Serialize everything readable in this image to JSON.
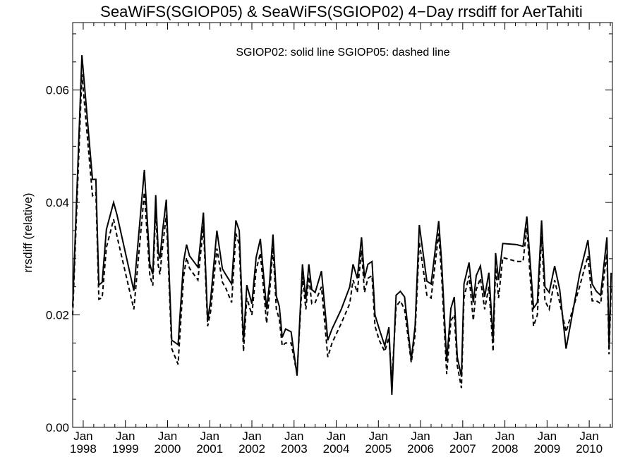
{
  "chart_data": {
    "type": "line",
    "title": "SeaWiFS(SGIOP05) & SeaWiFS(SGIOP02) 4−Day rrsdiff for AerTahiti",
    "annotation": "SGIOP02: solid line   SGIOP05: dashed line",
    "xlabel": "",
    "ylabel": "rrsdiff (relative)",
    "xlim": [
      1997.75,
      2010.55
    ],
    "ylim": [
      0.0,
      0.072
    ],
    "y_ticks": [
      0.0,
      0.02,
      0.04,
      0.06
    ],
    "y_tick_labels": [
      "0.00",
      "0.02",
      "0.04",
      "0.06"
    ],
    "x_ticks": [
      {
        "year": 1998,
        "label": [
          "Jan",
          "1998"
        ]
      },
      {
        "year": 1999,
        "label": [
          "Jan",
          "1999"
        ]
      },
      {
        "year": 2000,
        "label": [
          "Jan",
          "2000"
        ]
      },
      {
        "year": 2001,
        "label": [
          "Jan",
          "2001"
        ]
      },
      {
        "year": 2002,
        "label": [
          "Jan",
          "2002"
        ]
      },
      {
        "year": 2003,
        "label": [
          "Jan",
          "2003"
        ]
      },
      {
        "year": 2004,
        "label": [
          "Jan",
          "2004"
        ]
      },
      {
        "year": 2005,
        "label": [
          "Jan",
          "2005"
        ]
      },
      {
        "year": 2006,
        "label": [
          "Jan",
          "2006"
        ]
      },
      {
        "year": 2007,
        "label": [
          "Jan",
          "2007"
        ]
      },
      {
        "year": 2008,
        "label": [
          "Jan",
          "2008"
        ]
      },
      {
        "year": 2009,
        "label": [
          "Jan",
          "2009"
        ]
      },
      {
        "year": 2010,
        "label": [
          "Jan",
          "2010"
        ]
      }
    ],
    "grid": false,
    "series": [
      {
        "name": "SGIOP02",
        "style": "solid",
        "color": "#000000",
        "x": [
          1997.75,
          1997.97,
          1998.22,
          1998.3,
          1998.37,
          1998.45,
          1998.55,
          1998.72,
          1998.8,
          1999.2,
          1999.45,
          1999.58,
          1999.65,
          1999.72,
          1999.78,
          1999.82,
          1999.88,
          1999.97,
          2000.1,
          2000.25,
          2000.38,
          2000.45,
          2000.52,
          2000.72,
          2000.85,
          2000.95,
          2001.02,
          2001.17,
          2001.3,
          2001.38,
          2001.52,
          2001.62,
          2001.7,
          2001.8,
          2001.88,
          2002.0,
          2002.1,
          2002.2,
          2002.35,
          2002.42,
          2002.5,
          2002.58,
          2002.65,
          2002.72,
          2002.8,
          2002.93,
          2003.07,
          2003.2,
          2003.28,
          2003.35,
          2003.42,
          2003.5,
          2003.65,
          2003.8,
          2003.9,
          2004.12,
          2004.32,
          2004.4,
          2004.5,
          2004.6,
          2004.67,
          2004.75,
          2004.85,
          2004.92,
          2005.02,
          2005.15,
          2005.25,
          2005.32,
          2005.42,
          2005.52,
          2005.62,
          2005.78,
          2005.87,
          2005.97,
          2006.15,
          2006.25,
          2006.43,
          2006.5,
          2006.62,
          2006.72,
          2006.8,
          2006.87,
          2006.97,
          2007.03,
          2007.15,
          2007.25,
          2007.32,
          2007.42,
          2007.52,
          2007.62,
          2007.72,
          2007.78,
          2007.85,
          2007.95,
          2008.28,
          2008.43,
          2008.52,
          2008.68,
          2008.77,
          2008.87,
          2008.95,
          2009.05,
          2009.18,
          2009.3,
          2009.45,
          2009.77,
          2009.97,
          2010.07,
          2010.17,
          2010.27,
          2010.42,
          2010.47,
          2010.52
        ],
        "y": [
          0.0215,
          0.0662,
          0.0441,
          0.0441,
          0.0253,
          0.0258,
          0.0352,
          0.04,
          0.0378,
          0.0243,
          0.0458,
          0.029,
          0.0272,
          0.0413,
          0.0312,
          0.03,
          0.0348,
          0.0405,
          0.0155,
          0.0147,
          0.0295,
          0.0325,
          0.0305,
          0.0285,
          0.0382,
          0.019,
          0.0225,
          0.035,
          0.0282,
          0.0272,
          0.0255,
          0.0368,
          0.035,
          0.0152,
          0.0253,
          0.022,
          0.0302,
          0.0335,
          0.021,
          0.0258,
          0.0343,
          0.0233,
          0.0215,
          0.016,
          0.0175,
          0.017,
          0.0092,
          0.029,
          0.0228,
          0.029,
          0.0245,
          0.024,
          0.0278,
          0.0155,
          0.0175,
          0.021,
          0.025,
          0.029,
          0.0265,
          0.0338,
          0.0265,
          0.029,
          0.0295,
          0.02,
          0.0175,
          0.0145,
          0.0178,
          0.0058,
          0.0235,
          0.0242,
          0.0232,
          0.012,
          0.018,
          0.036,
          0.026,
          0.0255,
          0.0367,
          0.0295,
          0.0118,
          0.0212,
          0.0232,
          0.0125,
          0.009,
          0.0255,
          0.0293,
          0.0222,
          0.027,
          0.0287,
          0.0232,
          0.0275,
          0.0155,
          0.031,
          0.0262,
          0.0327,
          0.0325,
          0.0322,
          0.0375,
          0.0212,
          0.0222,
          0.0368,
          0.025,
          0.024,
          0.0287,
          0.0245,
          0.014,
          0.0272,
          0.0333,
          0.0255,
          0.0242,
          0.0235,
          0.0338,
          0.0145,
          0.0275
        ]
      },
      {
        "name": "SGIOP05",
        "style": "dashed",
        "color": "#000000",
        "x": [
          1997.75,
          1997.97,
          1998.22,
          1998.3,
          1998.37,
          1998.45,
          1998.55,
          1998.72,
          1998.8,
          1999.2,
          1999.45,
          1999.58,
          1999.65,
          1999.72,
          1999.78,
          1999.82,
          1999.88,
          1999.97,
          2000.1,
          2000.25,
          2000.38,
          2000.45,
          2000.52,
          2000.72,
          2000.85,
          2000.95,
          2001.02,
          2001.17,
          2001.3,
          2001.38,
          2001.52,
          2001.62,
          2001.7,
          2001.8,
          2001.88,
          2002.0,
          2002.1,
          2002.2,
          2002.35,
          2002.42,
          2002.5,
          2002.58,
          2002.65,
          2002.72,
          2002.8,
          2002.93,
          2003.07,
          2003.2,
          2003.28,
          2003.35,
          2003.42,
          2003.5,
          2003.65,
          2003.8,
          2003.9,
          2004.12,
          2004.32,
          2004.4,
          2004.5,
          2004.6,
          2004.67,
          2004.75,
          2004.85,
          2004.92,
          2005.02,
          2005.15,
          2005.25,
          2005.32,
          2005.42,
          2005.52,
          2005.62,
          2005.78,
          2005.87,
          2005.97,
          2006.15,
          2006.25,
          2006.43,
          2006.5,
          2006.62,
          2006.72,
          2006.8,
          2006.87,
          2006.97,
          2007.03,
          2007.15,
          2007.25,
          2007.32,
          2007.42,
          2007.52,
          2007.62,
          2007.72,
          2007.78,
          2007.85,
          2007.95,
          2008.28,
          2008.43,
          2008.52,
          2008.68,
          2008.77,
          2008.87,
          2008.95,
          2009.05,
          2009.18,
          2009.3,
          2009.45,
          2009.77,
          2009.97,
          2010.07,
          2010.17,
          2010.27,
          2010.42,
          2010.47,
          2010.52
        ],
        "y": [
          0.02,
          0.0628,
          0.0412,
          0.0418,
          0.0228,
          0.023,
          0.032,
          0.037,
          0.034,
          0.021,
          0.0418,
          0.027,
          0.0252,
          0.039,
          0.0288,
          0.0272,
          0.032,
          0.0378,
          0.014,
          0.0112,
          0.0268,
          0.0302,
          0.0283,
          0.0262,
          0.0358,
          0.018,
          0.0205,
          0.0318,
          0.0258,
          0.0248,
          0.0222,
          0.0345,
          0.0325,
          0.0135,
          0.023,
          0.02,
          0.028,
          0.031,
          0.0185,
          0.0238,
          0.032,
          0.021,
          0.0192,
          0.0145,
          0.015,
          0.015,
          0.0095,
          0.0268,
          0.021,
          0.0268,
          0.022,
          0.0222,
          0.025,
          0.0125,
          0.015,
          0.0185,
          0.022,
          0.0262,
          0.024,
          0.0315,
          0.024,
          0.0265,
          0.027,
          0.018,
          0.0155,
          0.0135,
          0.016,
          0.0082,
          0.0215,
          0.0225,
          0.021,
          0.0115,
          0.0165,
          0.033,
          0.0235,
          0.023,
          0.0345,
          0.027,
          0.0095,
          0.019,
          0.02,
          0.011,
          0.007,
          0.023,
          0.027,
          0.019,
          0.0245,
          0.0265,
          0.021,
          0.025,
          0.0135,
          0.0285,
          0.023,
          0.0302,
          0.0295,
          0.0295,
          0.0355,
          0.018,
          0.02,
          0.034,
          0.0225,
          0.021,
          0.0262,
          0.0222,
          0.017,
          0.025,
          0.0305,
          0.0225,
          0.0225,
          0.022,
          0.031,
          0.013,
          0.025
        ]
      }
    ]
  }
}
